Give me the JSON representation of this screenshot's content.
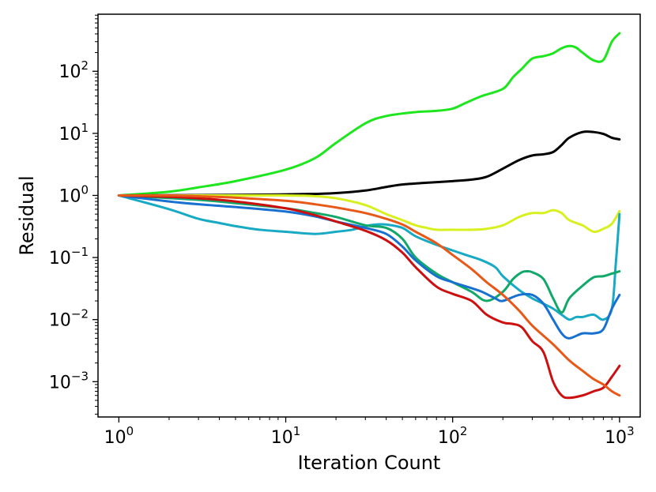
{
  "chart_data": {
    "type": "line",
    "title": "",
    "xlabel": "Iteration Count",
    "ylabel": "Residual",
    "xscale": "log",
    "yscale": "log",
    "xlim": [
      0.75,
      1330
    ],
    "ylim": [
      0.00027,
      830
    ],
    "x_ticks": [
      {
        "value": 1,
        "base": "10",
        "exp": "0"
      },
      {
        "value": 10,
        "base": "10",
        "exp": "1"
      },
      {
        "value": 100,
        "base": "10",
        "exp": "2"
      },
      {
        "value": 1000,
        "base": "10",
        "exp": "3"
      }
    ],
    "y_ticks": [
      {
        "value": 0.001,
        "base": "10",
        "exp": "−3"
      },
      {
        "value": 0.01,
        "base": "10",
        "exp": "−2"
      },
      {
        "value": 0.1,
        "base": "10",
        "exp": "−1"
      },
      {
        "value": 1,
        "base": "10",
        "exp": "0"
      },
      {
        "value": 10,
        "base": "10",
        "exp": "1"
      },
      {
        "value": 100,
        "base": "10",
        "exp": "2"
      }
    ],
    "series": [
      {
        "name": "series-green",
        "color": "#1ee61e",
        "x": [
          1,
          2,
          3,
          5,
          10,
          15,
          20,
          30,
          40,
          60,
          80,
          100,
          120,
          150,
          200,
          230,
          260,
          300,
          350,
          400,
          450,
          500,
          550,
          600,
          700,
          800,
          900,
          1000
        ],
        "y": [
          1.0,
          1.15,
          1.35,
          1.7,
          2.6,
          4.0,
          7.0,
          14.5,
          19.0,
          22.0,
          23.0,
          25.0,
          31.0,
          40.0,
          52.0,
          80.0,
          110.0,
          160.0,
          175.0,
          195.0,
          235.0,
          255.0,
          240.0,
          200.0,
          150.0,
          152.0,
          300.0,
          410.0
        ]
      },
      {
        "name": "series-black",
        "color": "#000000",
        "x": [
          1,
          5,
          10,
          15,
          20,
          30,
          40,
          50,
          70,
          100,
          130,
          160,
          200,
          250,
          300,
          350,
          400,
          450,
          500,
          600,
          700,
          800,
          900,
          1000
        ],
        "y": [
          1.0,
          1.02,
          1.04,
          1.06,
          1.09,
          1.2,
          1.37,
          1.5,
          1.6,
          1.7,
          1.8,
          2.0,
          2.7,
          3.7,
          4.4,
          4.6,
          5.0,
          6.5,
          8.5,
          10.5,
          10.5,
          9.8,
          8.5,
          8.0
        ]
      },
      {
        "name": "series-yellow",
        "color": "#d8f020",
        "x": [
          1,
          5,
          10,
          15,
          20,
          30,
          40,
          50,
          60,
          70,
          80,
          100,
          130,
          160,
          200,
          250,
          300,
          350,
          400,
          450,
          500,
          600,
          700,
          800,
          900,
          1000
        ],
        "y": [
          1.0,
          1.0,
          1.0,
          0.97,
          0.9,
          0.7,
          0.5,
          0.4,
          0.33,
          0.3,
          0.28,
          0.28,
          0.28,
          0.29,
          0.33,
          0.45,
          0.52,
          0.52,
          0.58,
          0.52,
          0.4,
          0.33,
          0.26,
          0.29,
          0.35,
          0.56
        ]
      },
      {
        "name": "series-teal",
        "color": "#18aac4",
        "x": [
          1,
          2,
          3,
          4,
          5,
          7,
          10,
          15,
          20,
          25,
          30,
          35,
          40,
          50,
          60,
          80,
          100,
          120,
          150,
          180,
          200,
          250,
          300,
          350,
          400,
          450,
          500,
          550,
          600,
          700,
          800,
          900,
          950,
          1000
        ],
        "y": [
          1.0,
          0.6,
          0.42,
          0.36,
          0.32,
          0.28,
          0.26,
          0.24,
          0.26,
          0.28,
          0.32,
          0.34,
          0.34,
          0.3,
          0.22,
          0.16,
          0.13,
          0.11,
          0.09,
          0.07,
          0.05,
          0.03,
          0.022,
          0.018,
          0.015,
          0.012,
          0.01,
          0.011,
          0.011,
          0.012,
          0.01,
          0.015,
          0.08,
          0.5
        ]
      },
      {
        "name": "series-emerald",
        "color": "#12a86a",
        "x": [
          1,
          3,
          5,
          10,
          15,
          20,
          30,
          40,
          50,
          60,
          80,
          100,
          130,
          160,
          200,
          230,
          260,
          280,
          300,
          350,
          400,
          450,
          500,
          600,
          700,
          800,
          900,
          1000
        ],
        "y": [
          1.0,
          0.85,
          0.75,
          0.62,
          0.52,
          0.45,
          0.33,
          0.3,
          0.2,
          0.1,
          0.055,
          0.04,
          0.028,
          0.02,
          0.028,
          0.045,
          0.058,
          0.06,
          0.058,
          0.045,
          0.022,
          0.013,
          0.022,
          0.035,
          0.048,
          0.05,
          0.055,
          0.06
        ]
      },
      {
        "name": "series-blue",
        "color": "#1870d0",
        "x": [
          1,
          2,
          3,
          5,
          10,
          15,
          20,
          30,
          40,
          50,
          60,
          80,
          100,
          130,
          150,
          180,
          200,
          250,
          300,
          350,
          400,
          450,
          500,
          600,
          700,
          800,
          900,
          1000
        ],
        "y": [
          1.0,
          0.8,
          0.72,
          0.65,
          0.55,
          0.46,
          0.38,
          0.3,
          0.24,
          0.15,
          0.09,
          0.05,
          0.04,
          0.032,
          0.028,
          0.022,
          0.02,
          0.025,
          0.025,
          0.018,
          0.01,
          0.006,
          0.005,
          0.006,
          0.006,
          0.007,
          0.015,
          0.025
        ]
      },
      {
        "name": "series-red",
        "color": "#cc1010",
        "x": [
          1,
          2,
          3,
          5,
          10,
          15,
          20,
          30,
          40,
          50,
          60,
          80,
          100,
          130,
          160,
          200,
          230,
          260,
          300,
          350,
          400,
          450,
          500,
          600,
          700,
          800,
          900,
          1000
        ],
        "y": [
          1.0,
          0.95,
          0.9,
          0.8,
          0.62,
          0.48,
          0.38,
          0.27,
          0.19,
          0.12,
          0.07,
          0.034,
          0.026,
          0.02,
          0.012,
          0.009,
          0.0085,
          0.0075,
          0.0045,
          0.003,
          0.001,
          0.0006,
          0.00055,
          0.0006,
          0.0007,
          0.0008,
          0.0012,
          0.0018
        ]
      },
      {
        "name": "series-orange",
        "color": "#e85818",
        "x": [
          1,
          2,
          3,
          5,
          10,
          15,
          20,
          30,
          40,
          50,
          60,
          80,
          100,
          130,
          160,
          200,
          250,
          300,
          400,
          500,
          600,
          700,
          800,
          900,
          1000
        ],
        "y": [
          1.0,
          1.0,
          0.97,
          0.92,
          0.82,
          0.72,
          0.64,
          0.52,
          0.42,
          0.34,
          0.26,
          0.17,
          0.11,
          0.065,
          0.04,
          0.025,
          0.014,
          0.008,
          0.004,
          0.0022,
          0.0015,
          0.0011,
          0.0009,
          0.0007,
          0.0006
        ]
      }
    ]
  }
}
